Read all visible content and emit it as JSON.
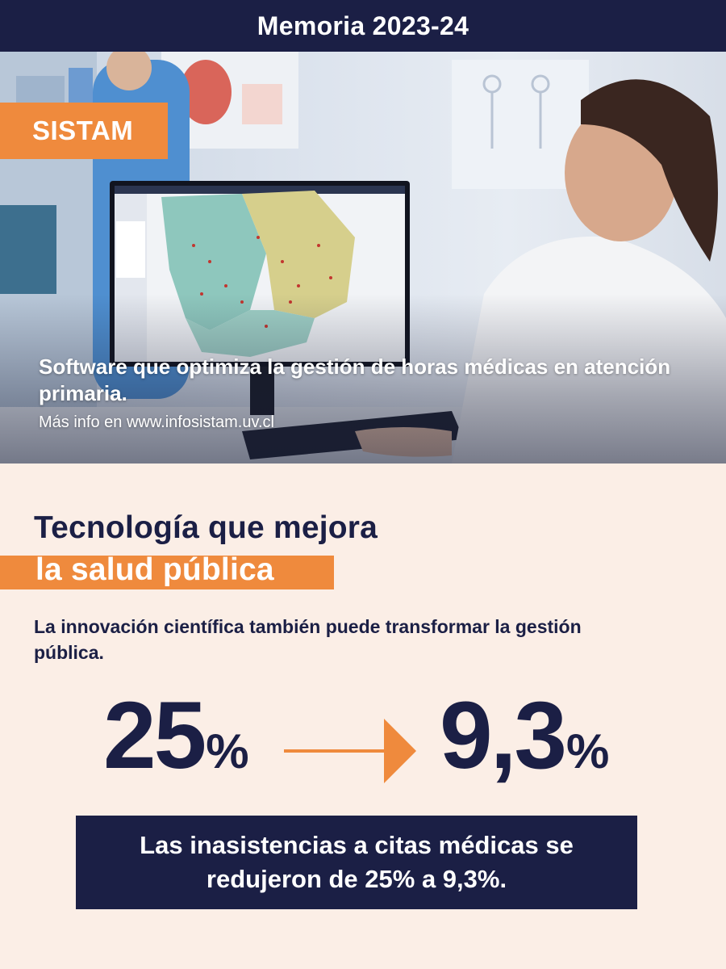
{
  "header": {
    "title": "Memoria 2023-24"
  },
  "hero": {
    "tag": "SISTAM",
    "caption": "Software que optimiza la gestión de horas médicas en atención primaria.",
    "more_info": "Más info en www.infosistam.uv.cl"
  },
  "headline": {
    "line1": "Tecnología que mejora",
    "line2": "la salud pública"
  },
  "intro": "La innovación científica también puede transformar la gestión pública.",
  "stats": {
    "before_value": "25",
    "before_unit": "%",
    "after_value": "9,3",
    "after_unit": "%"
  },
  "summary": "Las inasistencias a citas médicas se redujeron de 25% a 9,3%.",
  "colors": {
    "navy": "#1b1f45",
    "orange": "#ef8a3d",
    "background": "#fbeee6"
  }
}
